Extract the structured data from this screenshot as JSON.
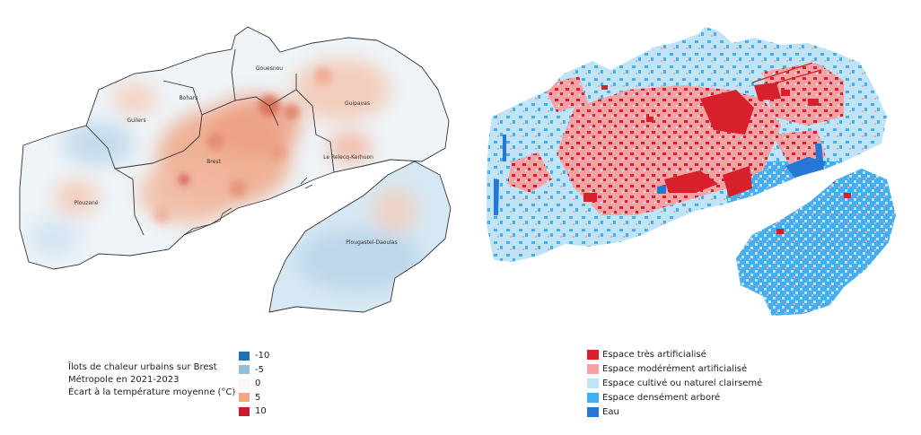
{
  "left_map": {
    "communes": [
      {
        "id": "guilers",
        "label": "Guilers"
      },
      {
        "id": "bohars",
        "label": "Bohars"
      },
      {
        "id": "gouesnou",
        "label": "Gouesnou"
      },
      {
        "id": "guipavas",
        "label": "Guipavas"
      },
      {
        "id": "brest",
        "label": "Brest"
      },
      {
        "id": "relecq",
        "label": "Le Relecq-Kerhuon"
      },
      {
        "id": "plouzane",
        "label": "Plouzané"
      },
      {
        "id": "plougastel",
        "label": "Plougastel-Daoulas"
      }
    ]
  },
  "caption": {
    "line1": "Îlots de chaleur urbains sur Brest",
    "line2": "Métropole en 2021-2023",
    "line3": "Écart à la température moyenne (°C)"
  },
  "heat_legend": [
    {
      "label": "-10",
      "color": "#1f6fb4"
    },
    {
      "label": "-5",
      "color": "#8fbfdf"
    },
    {
      "label": "0",
      "color": "#f7f7f7"
    },
    {
      "label": "5",
      "color": "#f4a582"
    },
    {
      "label": "10",
      "color": "#c81a2c"
    }
  ],
  "land_legend": [
    {
      "label": "Espace très artificialisé",
      "color": "#d7202b"
    },
    {
      "label": "Espace modérément artificialisé",
      "color": "#f4a3a5"
    },
    {
      "label": "Espace cultivé ou naturel clairsemé",
      "color": "#bfe3f7"
    },
    {
      "label": "Espace densément arboré",
      "color": "#45aef0"
    },
    {
      "label": "Eau",
      "color": "#2677d3"
    }
  ]
}
